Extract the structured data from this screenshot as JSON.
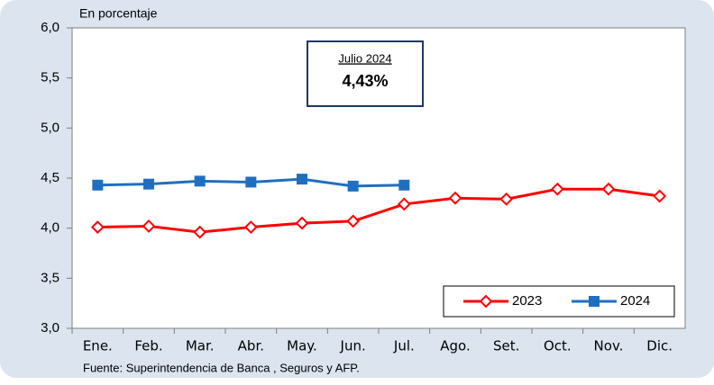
{
  "chart_data": {
    "type": "line",
    "y_label": "En porcentaje",
    "source": "Fuente: Superintendencia de Banca , Seguros y AFP.",
    "annotation": {
      "title": "Julio 2024",
      "value": "4,43%"
    },
    "categories": [
      "Ene.",
      "Feb.",
      "Mar.",
      "Abr.",
      "May.",
      "Jun.",
      "Jul.",
      "Ago.",
      "Set.",
      "Oct.",
      "Nov.",
      "Dic."
    ],
    "series": [
      {
        "name": "2023",
        "color": "#ff0000",
        "marker": "diamond",
        "values": [
          4.01,
          4.02,
          3.96,
          4.01,
          4.05,
          4.07,
          4.24,
          4.3,
          4.29,
          4.39,
          4.39,
          4.32
        ]
      },
      {
        "name": "2024",
        "color": "#1f6fc1",
        "marker": "square",
        "values": [
          4.43,
          4.44,
          4.47,
          4.46,
          4.49,
          4.42,
          4.43,
          null,
          null,
          null,
          null,
          null
        ]
      }
    ],
    "ylim": [
      3.0,
      6.0
    ],
    "yticks": [
      {
        "value": 3.0,
        "label": "3,0"
      },
      {
        "value": 3.5,
        "label": "3,5"
      },
      {
        "value": 4.0,
        "label": "4,0"
      },
      {
        "value": 4.5,
        "label": "4,5"
      },
      {
        "value": 5.0,
        "label": "5,0"
      },
      {
        "value": 5.5,
        "label": "5,5"
      },
      {
        "value": 6.0,
        "label": "6,0"
      }
    ],
    "legend": "lower right"
  }
}
